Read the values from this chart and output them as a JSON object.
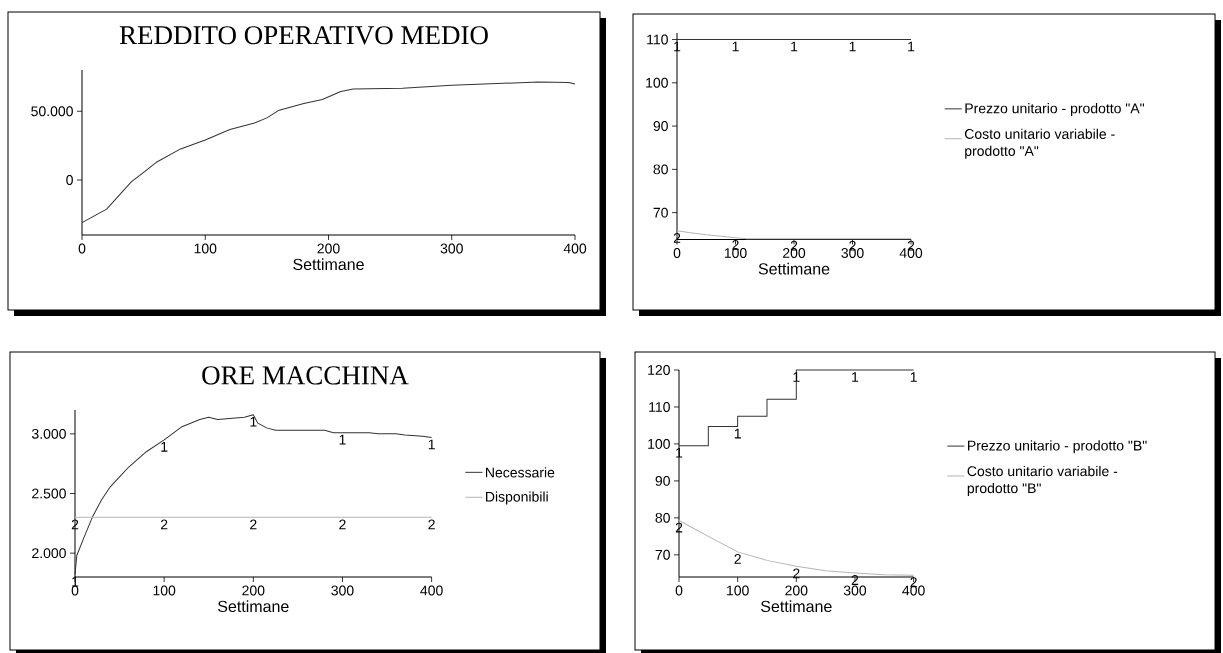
{
  "chart_data": [
    {
      "type": "line",
      "title": "REDDITO OPERATIVO MEDIO",
      "xlabel": "Settimane",
      "color": "#333333",
      "x": [
        0,
        20,
        40,
        50,
        60,
        80,
        100,
        120,
        140,
        150,
        160,
        180,
        195,
        210,
        220,
        260,
        300,
        370,
        395,
        400
      ],
      "values": [
        -31000,
        -21200,
        -1400,
        5600,
        12700,
        22600,
        29100,
        36700,
        41500,
        45200,
        50800,
        55600,
        58500,
        64400,
        66100,
        66700,
        68900,
        71200,
        70900,
        69800
      ],
      "xlim": [
        0,
        400
      ],
      "ylim": [
        -40000,
        80000
      ],
      "xticks": [
        0,
        100,
        200,
        300,
        400
      ],
      "yticks": [
        0,
        {
          "value": 50000,
          "label": "50.000"
        }
      ]
    },
    {
      "type": "line",
      "xlabel": "Settimane",
      "legend": "right",
      "series": [
        {
          "name": "Prezzo unitario - prodotto \"A\"",
          "color": "#333333",
          "x": [
            0,
            100,
            200,
            300,
            400
          ],
          "values": [
            110,
            110,
            110,
            110,
            110
          ]
        },
        {
          "name": "Costo unitario variabile - prodotto \"A\"",
          "color": "#b4b4b4",
          "x": [
            0,
            20,
            50,
            80,
            100,
            120,
            200,
            300,
            400
          ],
          "values": [
            65.8,
            65.4,
            64.9,
            64.5,
            64.2,
            64,
            64,
            64,
            64
          ]
        }
      ],
      "annotations": [
        {
          "text": "1",
          "x": 0,
          "y": 110
        },
        {
          "text": "1",
          "x": 100,
          "y": 110
        },
        {
          "text": "1",
          "x": 200,
          "y": 110
        },
        {
          "text": "1",
          "x": 300,
          "y": 110
        },
        {
          "text": "1",
          "x": 400,
          "y": 110
        },
        {
          "text": "2",
          "x": 0,
          "y": 65.8
        },
        {
          "text": "2",
          "x": 100,
          "y": 64.2
        },
        {
          "text": "2",
          "x": 200,
          "y": 64
        },
        {
          "text": "2",
          "x": 300,
          "y": 64
        },
        {
          "text": "2",
          "x": 400,
          "y": 64
        }
      ],
      "xlim": [
        0,
        400
      ],
      "ylim": [
        63.8,
        111.5
      ],
      "xticks": [
        0,
        100,
        200,
        300,
        400
      ],
      "yticks": [
        70,
        80,
        90,
        100,
        110
      ]
    },
    {
      "type": "line",
      "title": "ORE MACCHINA",
      "xlabel": "Settimane",
      "legend": "right",
      "series": [
        {
          "name": "Necessarie",
          "color": "#333333",
          "x": [
            0,
            2,
            10,
            20,
            30,
            40,
            50,
            60,
            80,
            100,
            120,
            140,
            150,
            160,
            190,
            200,
            205,
            215,
            225,
            280,
            290,
            330,
            340,
            360,
            370,
            390,
            400
          ],
          "values": [
            1820,
            1980,
            2130,
            2310,
            2450,
            2560,
            2640,
            2720,
            2850,
            2950,
            3060,
            3120,
            3140,
            3120,
            3140,
            3160,
            3090,
            3050,
            3030,
            3030,
            3010,
            3010,
            3000,
            3000,
            2990,
            2980,
            2970
          ]
        },
        {
          "name": "Disponibili",
          "color": "#b4b4b4",
          "x": [
            0,
            100,
            200,
            300,
            400
          ],
          "values": [
            2300,
            2300,
            2300,
            2300,
            2300
          ]
        }
      ],
      "annotations": [
        {
          "text": "1",
          "x": 0,
          "y": 1820
        },
        {
          "text": "1",
          "x": 100,
          "y": 2950
        },
        {
          "text": "1",
          "x": 200,
          "y": 3160
        },
        {
          "text": "1",
          "x": 300,
          "y": 3010
        },
        {
          "text": "1",
          "x": 400,
          "y": 2970
        },
        {
          "text": "2",
          "x": 0,
          "y": 2300
        },
        {
          "text": "2",
          "x": 100,
          "y": 2300
        },
        {
          "text": "2",
          "x": 200,
          "y": 2300
        },
        {
          "text": "2",
          "x": 300,
          "y": 2300
        },
        {
          "text": "2",
          "x": 400,
          "y": 2300
        }
      ],
      "xlim": [
        0,
        400
      ],
      "ylim": [
        1800,
        3200
      ],
      "xticks": [
        0,
        100,
        200,
        300,
        400
      ],
      "yticks": [
        {
          "value": 2000,
          "label": "2.000"
        },
        {
          "value": 2500,
          "label": "2.500"
        },
        {
          "value": 3000,
          "label": "3.000"
        }
      ]
    },
    {
      "type": "line",
      "xlabel": "Settimane",
      "legend": "right",
      "series": [
        {
          "name": "Prezzo unitario - prodotto \"B\"",
          "type": "step",
          "color": "#333333",
          "x": [
            0,
            50,
            100,
            150,
            200,
            400
          ],
          "values": [
            99.5,
            104.7,
            107.5,
            112.1,
            120,
            120
          ]
        },
        {
          "name": "Costo unitario variabile - prodotto \"B\"",
          "color": "#b4b4b4",
          "x": [
            0,
            50,
            100,
            150,
            200,
            250,
            300,
            350,
            400
          ],
          "values": [
            79.3,
            75,
            70.8,
            68.5,
            66.9,
            65.7,
            65.1,
            64.6,
            64.5
          ]
        }
      ],
      "annotations": [
        {
          "text": "1",
          "x": 0,
          "y": 99.5
        },
        {
          "text": "1",
          "x": 100,
          "y": 104.7
        },
        {
          "text": "1",
          "x": 200,
          "y": 120
        },
        {
          "text": "1",
          "x": 300,
          "y": 120
        },
        {
          "text": "1",
          "x": 400,
          "y": 120
        },
        {
          "text": "2",
          "x": 0,
          "y": 79.3
        },
        {
          "text": "2",
          "x": 100,
          "y": 70.8
        },
        {
          "text": "2",
          "x": 200,
          "y": 66.9
        },
        {
          "text": "2",
          "x": 300,
          "y": 65.1
        },
        {
          "text": "2",
          "x": 400,
          "y": 64.5
        }
      ],
      "xlim": [
        0,
        400
      ],
      "ylim": [
        64,
        120
      ],
      "xticks": [
        0,
        100,
        200,
        300,
        400
      ],
      "yticks": [
        70,
        80,
        90,
        100,
        110,
        120
      ]
    }
  ]
}
